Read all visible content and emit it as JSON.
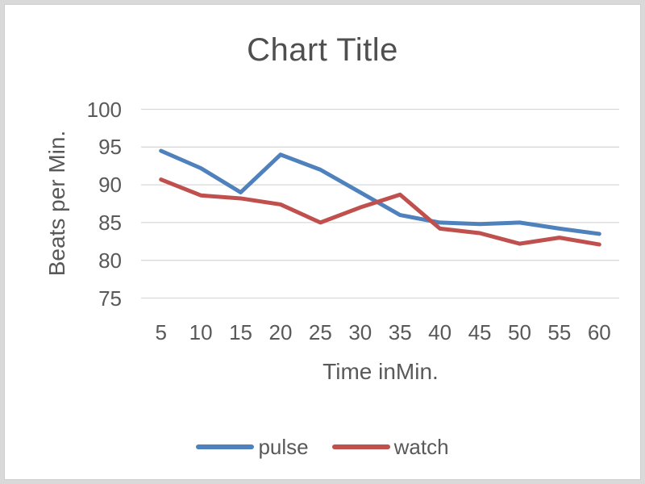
{
  "window": {
    "background": "#ffffff",
    "frame_color": "#d9d9d9"
  },
  "chart_data": {
    "type": "line",
    "title": "Chart Title",
    "xlabel": "Time inMin.",
    "ylabel": "Beats per Min.",
    "x": [
      5,
      10,
      15,
      20,
      25,
      30,
      35,
      40,
      45,
      50,
      55,
      60
    ],
    "series": [
      {
        "name": "pulse",
        "color": "#4F81BD",
        "values": [
          94.5,
          92.2,
          89,
          94,
          92,
          89,
          86,
          85,
          84.8,
          85,
          84.2,
          83.5
        ]
      },
      {
        "name": "watch",
        "color": "#C0504D",
        "values": [
          90.7,
          88.6,
          88.2,
          87.4,
          85,
          87,
          88.7,
          84.2,
          83.6,
          82.2,
          83,
          82.1
        ]
      }
    ],
    "ylim": [
      75,
      100
    ],
    "yticks": [
      100,
      95,
      90,
      85,
      80,
      75
    ],
    "grid": true,
    "gridline_color": "#d9d9d9",
    "text_color": "#595959",
    "legend_position": "bottom"
  }
}
